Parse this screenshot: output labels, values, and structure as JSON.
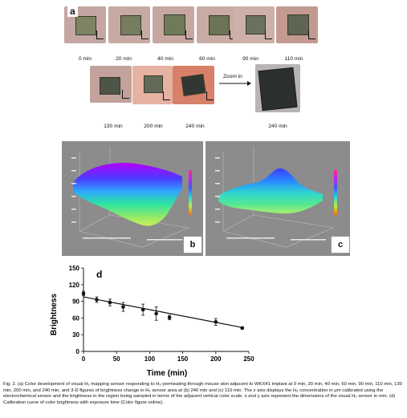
{
  "panel_a": {
    "letter": "a",
    "times": [
      "0 min",
      "20 min",
      "40 min",
      "60 min",
      "90 min",
      "110 min",
      "130 min",
      "200 min",
      "240 min"
    ],
    "zoom_label": "Zoom in",
    "zoom_time": "240 min"
  },
  "panel_b": {
    "letter": "b"
  },
  "panel_c": {
    "letter": "c"
  },
  "chart_data": {
    "type": "scatter",
    "panel_letter": "d",
    "xlabel": "Time (min)",
    "ylabel": "Brightness",
    "xlim": [
      0,
      250
    ],
    "ylim": [
      0,
      150
    ],
    "xticks": [
      0,
      50,
      100,
      150,
      200,
      250
    ],
    "yticks": [
      0,
      30,
      60,
      90,
      120,
      150
    ],
    "points": [
      {
        "x": 0,
        "y": 104,
        "err": 4
      },
      {
        "x": 20,
        "y": 93,
        "err": 5
      },
      {
        "x": 40,
        "y": 88,
        "err": 6
      },
      {
        "x": 60,
        "y": 80,
        "err": 8
      },
      {
        "x": 90,
        "y": 75,
        "err": 10
      },
      {
        "x": 110,
        "y": 68,
        "err": 12
      },
      {
        "x": 130,
        "y": 61,
        "err": 4
      },
      {
        "x": 200,
        "y": 53,
        "err": 6
      },
      {
        "x": 240,
        "y": 42,
        "err": 2
      }
    ],
    "fit_line": {
      "x": [
        0,
        240
      ],
      "y": [
        98,
        43
      ]
    },
    "grid": false
  },
  "caption": "Fig. 2. (a) Color development of visual H₂ mapping sensor responding to H₂ permeating through mouse skin adjacent to WKX41 implant at 0 min, 20 min, 40 min, 60 min, 90 min, 110 min, 130 min, 200 min, and 240 min, and 3-D figures of brightness change in H₂ sensor area at (b) 240 min and (c) 110 min. The z axis displays the H₂ concentration in μm calibrated using the electrochemical sensor and the brightness in the region being sampled in terms of the adjacent vertical color scale. x and y axis represent the dimensions of the visual H₂ sensor in mm. (d) Calibration curve of color brightness with exposure time (Color figure online).",
  "colors": {
    "skin": "#c9a39a",
    "skin_red": "#d98a72",
    "sensor_green": "#6f7a58",
    "sensor_dark": "#2f332e",
    "plot_bg": "#8c8c8c"
  }
}
